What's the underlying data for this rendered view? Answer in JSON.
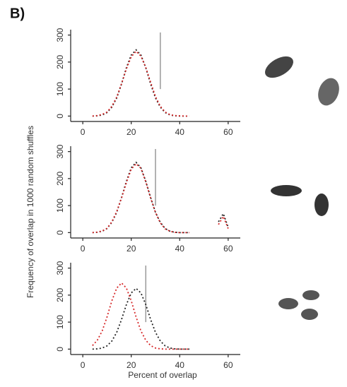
{
  "panel_label": "B)",
  "y_axis_label": "Frequency of overlap in 1000 random shuffles",
  "x_axis_label": "Percent of overlap",
  "chart_data": [
    {
      "type": "line",
      "x": [
        4,
        6,
        8,
        10,
        12,
        14,
        16,
        18,
        20,
        22,
        24,
        26,
        28,
        30,
        32,
        34,
        36,
        38,
        40,
        42,
        44
      ],
      "series": [
        {
          "color": "#222222",
          "values": [
            0,
            1,
            4,
            13,
            33,
            67,
            119,
            179,
            226,
            245,
            226,
            179,
            119,
            67,
            33,
            13,
            4,
            1,
            0,
            0,
            0
          ]
        },
        {
          "color": "#d62728",
          "values": [
            0,
            2,
            6,
            15,
            36,
            70,
            120,
            175,
            220,
            240,
            222,
            180,
            125,
            72,
            36,
            15,
            5,
            2,
            1,
            0,
            0
          ]
        }
      ],
      "observed": 32,
      "observed_color": "#999999",
      "xlim": [
        -5,
        65
      ],
      "xticks": [
        0,
        20,
        40,
        60
      ],
      "ylim": [
        -20,
        320
      ],
      "yticks": [
        0,
        100,
        200,
        300
      ]
    },
    {
      "type": "line",
      "x": [
        4,
        6,
        8,
        10,
        12,
        14,
        16,
        18,
        20,
        22,
        24,
        26,
        28,
        30,
        32,
        34,
        36,
        38,
        40,
        42,
        44,
        50,
        56,
        58,
        60
      ],
      "series": [
        {
          "color": "#222222",
          "values": [
            0,
            1,
            5,
            15,
            38,
            75,
            130,
            190,
            240,
            260,
            240,
            190,
            130,
            75,
            38,
            15,
            5,
            1,
            0,
            0,
            0,
            null,
            40,
            70,
            20
          ]
        },
        {
          "color": "#d62728",
          "values": [
            0,
            2,
            6,
            16,
            40,
            78,
            128,
            185,
            235,
            255,
            238,
            188,
            128,
            74,
            36,
            14,
            5,
            1,
            0,
            0,
            0,
            null,
            30,
            60,
            15
          ]
        }
      ],
      "observed": 30,
      "observed_color": "#999999",
      "xlim": [
        -5,
        65
      ],
      "xticks": [
        0,
        20,
        40,
        60
      ],
      "ylim": [
        -20,
        320
      ],
      "yticks": [
        0,
        100,
        200,
        300
      ]
    },
    {
      "type": "line",
      "x": [
        4,
        6,
        8,
        10,
        12,
        14,
        16,
        18,
        20,
        22,
        24,
        26,
        28,
        30,
        32,
        34,
        36,
        38,
        40,
        42,
        44
      ],
      "series": [
        {
          "color": "#222222",
          "values": [
            0,
            1,
            4,
            12,
            30,
            62,
            110,
            165,
            208,
            225,
            208,
            165,
            110,
            62,
            30,
            12,
            4,
            1,
            0,
            0,
            0
          ]
        },
        {
          "color": "#d62728",
          "values": [
            13,
            33,
            67,
            119,
            179,
            226,
            245,
            226,
            179,
            119,
            67,
            33,
            13,
            4,
            1,
            0,
            0,
            0,
            0,
            0,
            0
          ]
        }
      ],
      "observed": 26,
      "observed_color": "#999999",
      "xlim": [
        -5,
        65
      ],
      "xticks": [
        0,
        20,
        40,
        60
      ],
      "ylim": [
        -20,
        320
      ],
      "yticks": [
        0,
        100,
        200,
        300
      ]
    }
  ]
}
